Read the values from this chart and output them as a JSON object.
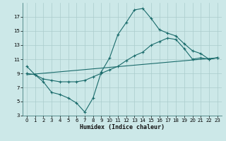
{
  "xlabel": "Humidex (Indice chaleur)",
  "bg_color": "#cce8e8",
  "grid_color": "#aacccc",
  "line_color": "#1a6b6b",
  "line1_x": [
    0,
    1,
    2,
    3,
    4,
    5,
    6,
    7,
    8,
    9,
    10,
    11,
    12,
    13,
    14,
    15,
    16,
    17,
    18,
    19,
    20,
    21,
    22,
    23
  ],
  "line1_y": [
    10.0,
    8.8,
    7.8,
    6.3,
    6.0,
    5.5,
    4.8,
    3.5,
    5.5,
    9.2,
    11.2,
    14.5,
    16.2,
    18.0,
    18.2,
    16.8,
    15.2,
    14.7,
    14.3,
    13.2,
    12.2,
    11.8,
    11.0,
    11.2
  ],
  "line2_x": [
    0,
    1,
    2,
    3,
    4,
    5,
    6,
    7,
    8,
    9,
    10,
    11,
    12,
    13,
    14,
    15,
    16,
    17,
    18,
    19,
    20,
    21,
    22,
    23
  ],
  "line2_y": [
    9.0,
    8.8,
    8.2,
    8.0,
    7.8,
    7.8,
    7.8,
    8.0,
    8.5,
    9.0,
    9.5,
    10.0,
    10.8,
    11.5,
    12.0,
    13.0,
    13.5,
    14.0,
    13.8,
    12.5,
    11.0,
    11.2,
    11.0,
    11.2
  ],
  "line3_x": [
    0,
    23
  ],
  "line3_y": [
    8.8,
    11.2
  ],
  "xlim": [
    -0.5,
    23.5
  ],
  "ylim": [
    3,
    19
  ],
  "yticks": [
    3,
    5,
    7,
    9,
    11,
    13,
    15,
    17
  ],
  "xticks": [
    0,
    1,
    2,
    3,
    4,
    5,
    6,
    7,
    8,
    9,
    10,
    11,
    12,
    13,
    14,
    15,
    16,
    17,
    18,
    19,
    20,
    21,
    22,
    23
  ]
}
